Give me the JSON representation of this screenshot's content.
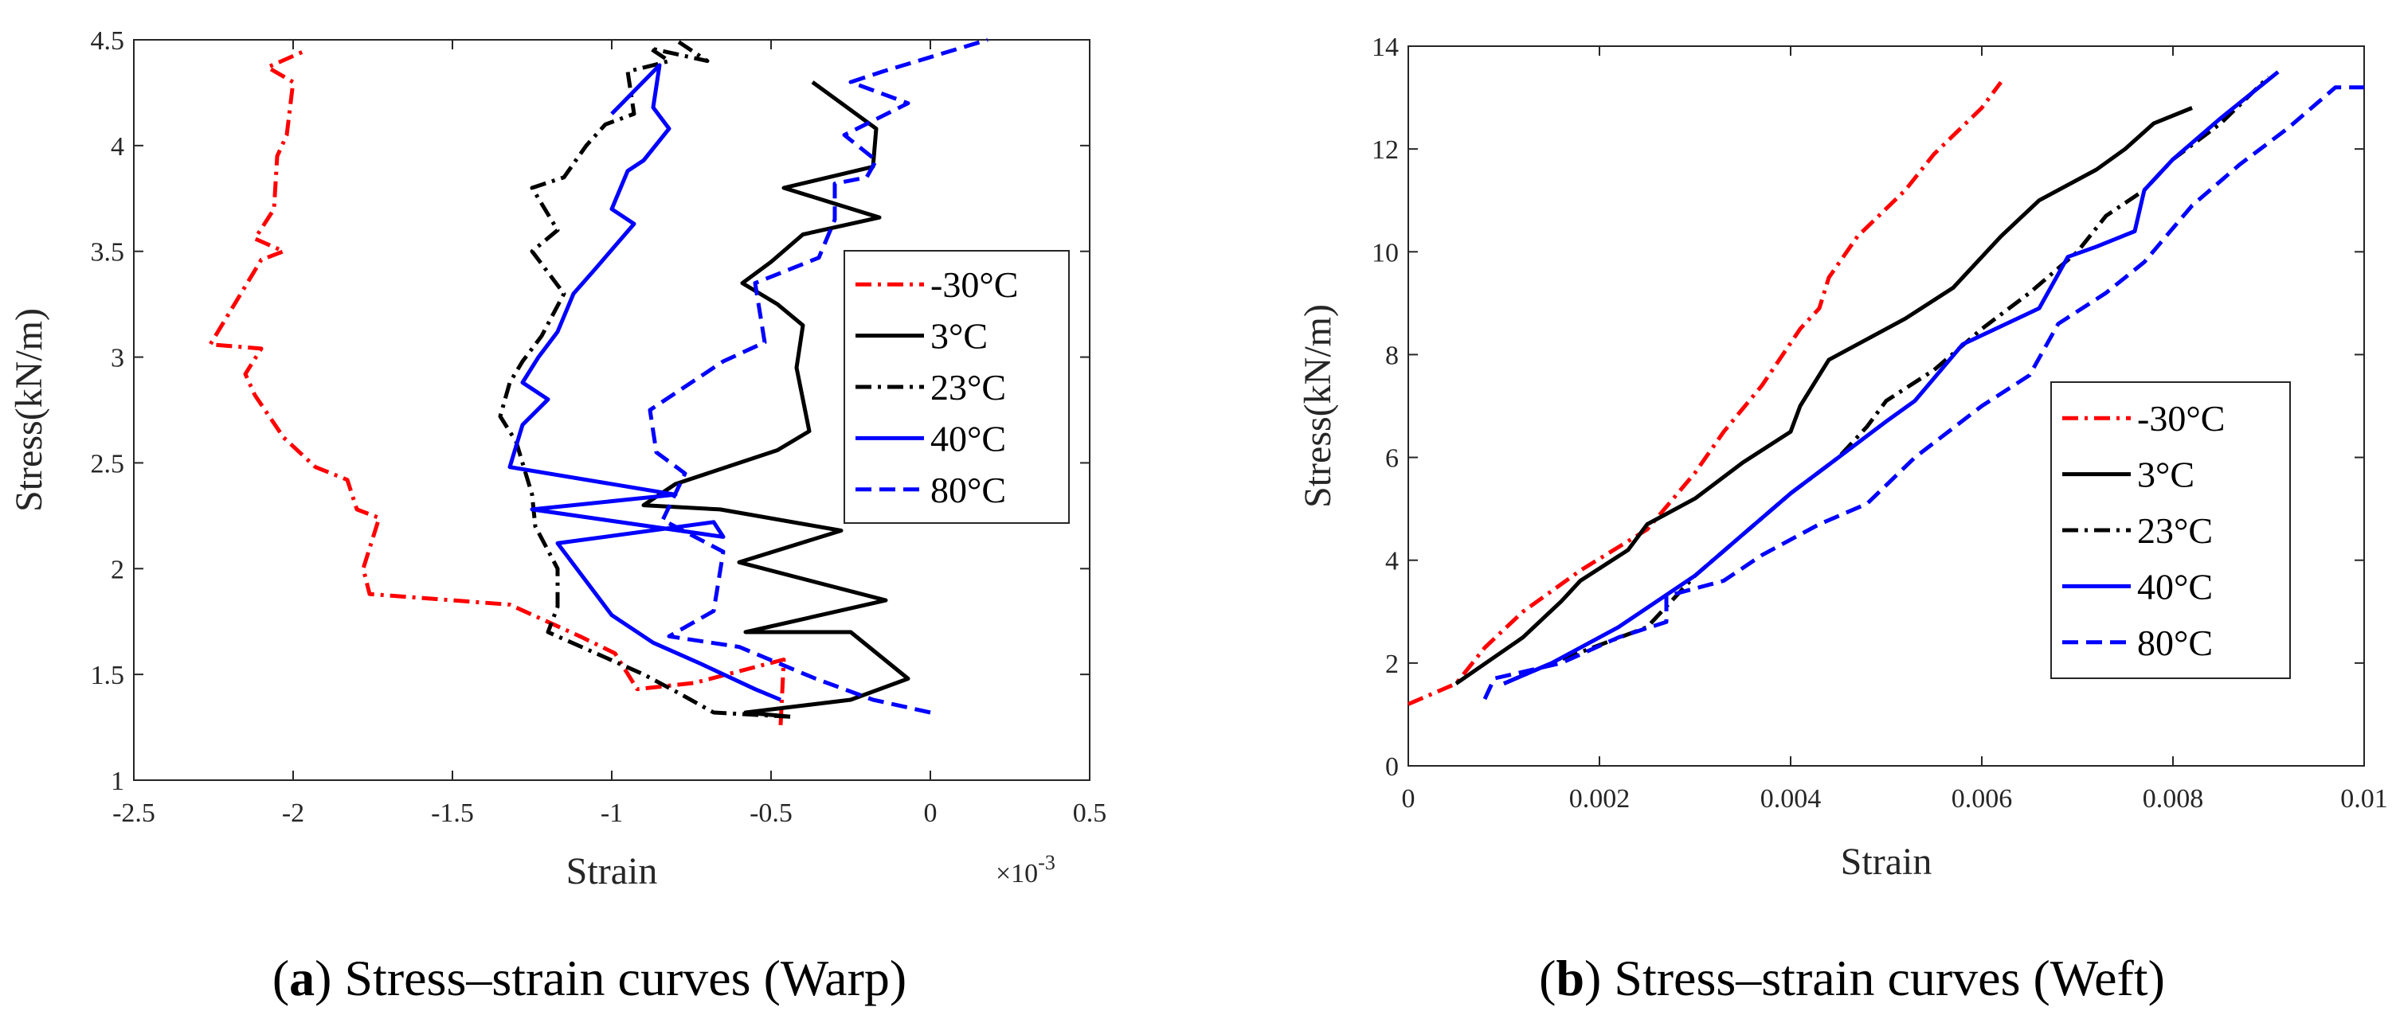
{
  "chart_data": [
    {
      "type": "line",
      "title": "",
      "caption_letter": "a",
      "caption_text": "Stress–strain curves (Warp)",
      "xlabel": "Strain",
      "ylabel": "Stress(kN/m)",
      "x_exponent_label": "×10",
      "x_exponent_power": "-3",
      "xlim": [
        -2.5,
        0.5
      ],
      "ylim": [
        1,
        4.5
      ],
      "xticks": [
        -2.5,
        -2,
        -1.5,
        -1,
        -0.5,
        0,
        0.5
      ],
      "xtick_labels": [
        "-2.5",
        "-2",
        "-1.5",
        "-1",
        "-0.5",
        "0",
        "0.5"
      ],
      "yticks": [
        1,
        1.5,
        2,
        2.5,
        3,
        3.5,
        4,
        4.5
      ],
      "ytick_labels": [
        "1",
        "1.5",
        "2",
        "2.5",
        "3",
        "3.5",
        "4",
        "4.5"
      ],
      "grid": false,
      "legend_position": "right",
      "series": [
        {
          "name": "-30°C",
          "color": "#ff0000",
          "dash": "dashdot",
          "points": [
            [
              -0.47,
              1.26
            ],
            [
              -0.46,
              1.57
            ],
            [
              -0.74,
              1.46
            ],
            [
              -0.92,
              1.43
            ],
            [
              -0.99,
              1.6
            ],
            [
              -1.1,
              1.68
            ],
            [
              -1.32,
              1.83
            ],
            [
              -1.76,
              1.88
            ],
            [
              -1.78,
              2.0
            ],
            [
              -1.73,
              2.24
            ],
            [
              -1.8,
              2.28
            ],
            [
              -1.83,
              2.42
            ],
            [
              -1.93,
              2.48
            ],
            [
              -2.03,
              2.62
            ],
            [
              -2.12,
              2.82
            ],
            [
              -2.15,
              2.92
            ],
            [
              -2.1,
              3.04
            ],
            [
              -2.26,
              3.06
            ],
            [
              -2.18,
              3.26
            ],
            [
              -2.1,
              3.46
            ],
            [
              -2.03,
              3.5
            ],
            [
              -2.12,
              3.56
            ],
            [
              -2.06,
              3.7
            ],
            [
              -2.05,
              3.95
            ],
            [
              -2.02,
              4.05
            ],
            [
              -2.0,
              4.3
            ],
            [
              -2.08,
              4.37
            ],
            [
              -1.96,
              4.45
            ]
          ]
        },
        {
          "name": "3°C",
          "color": "#000000",
          "dash": "solid",
          "points": [
            [
              -0.44,
              1.3
            ],
            [
              -0.58,
              1.32
            ],
            [
              -0.25,
              1.38
            ],
            [
              -0.07,
              1.48
            ],
            [
              -0.25,
              1.7
            ],
            [
              -0.58,
              1.7
            ],
            [
              -0.14,
              1.85
            ],
            [
              -0.6,
              2.03
            ],
            [
              -0.28,
              2.18
            ],
            [
              -0.66,
              2.28
            ],
            [
              -0.9,
              2.3
            ],
            [
              -0.8,
              2.4
            ],
            [
              -0.48,
              2.56
            ],
            [
              -0.38,
              2.65
            ],
            [
              -0.42,
              2.95
            ],
            [
              -0.4,
              3.15
            ],
            [
              -0.48,
              3.25
            ],
            [
              -0.59,
              3.35
            ],
            [
              -0.5,
              3.45
            ],
            [
              -0.4,
              3.58
            ],
            [
              -0.16,
              3.66
            ],
            [
              -0.46,
              3.8
            ],
            [
              -0.18,
              3.9
            ],
            [
              -0.17,
              4.08
            ],
            [
              -0.37,
              4.3
            ]
          ]
        },
        {
          "name": "23°C",
          "color": "#000000",
          "dash": "dashdot",
          "points": [
            [
              -0.44,
              1.3
            ],
            [
              -0.68,
              1.32
            ],
            [
              -0.8,
              1.42
            ],
            [
              -0.9,
              1.5
            ],
            [
              -1.2,
              1.7
            ],
            [
              -1.17,
              1.82
            ],
            [
              -1.17,
              2.0
            ],
            [
              -1.24,
              2.2
            ],
            [
              -1.25,
              2.35
            ],
            [
              -1.3,
              2.6
            ],
            [
              -1.35,
              2.72
            ],
            [
              -1.32,
              2.88
            ],
            [
              -1.28,
              2.98
            ],
            [
              -1.22,
              3.1
            ],
            [
              -1.15,
              3.3
            ],
            [
              -1.25,
              3.5
            ],
            [
              -1.17,
              3.6
            ],
            [
              -1.25,
              3.8
            ],
            [
              -1.15,
              3.85
            ],
            [
              -1.08,
              4.0
            ],
            [
              -1.02,
              4.1
            ],
            [
              -0.93,
              4.15
            ],
            [
              -0.95,
              4.35
            ],
            [
              -0.87,
              4.38
            ],
            [
              -0.82,
              4.4
            ],
            [
              -0.88,
              4.46
            ],
            [
              -0.7,
              4.4
            ],
            [
              -0.8,
              4.5
            ]
          ]
        },
        {
          "name": "40°C",
          "color": "#0000ff",
          "dash": "solid",
          "points": [
            [
              -0.47,
              1.38
            ],
            [
              -0.55,
              1.43
            ],
            [
              -0.72,
              1.55
            ],
            [
              -0.87,
              1.65
            ],
            [
              -1.0,
              1.78
            ],
            [
              -1.17,
              2.12
            ],
            [
              -0.68,
              2.22
            ],
            [
              -0.65,
              2.15
            ],
            [
              -1.25,
              2.28
            ],
            [
              -0.8,
              2.35
            ],
            [
              -1.32,
              2.48
            ],
            [
              -1.28,
              2.68
            ],
            [
              -1.2,
              2.8
            ],
            [
              -1.28,
              2.88
            ],
            [
              -1.23,
              3.0
            ],
            [
              -1.17,
              3.12
            ],
            [
              -1.12,
              3.3
            ],
            [
              -1.05,
              3.42
            ],
            [
              -0.93,
              3.63
            ],
            [
              -1.0,
              3.7
            ],
            [
              -0.95,
              3.88
            ],
            [
              -0.9,
              3.93
            ],
            [
              -0.82,
              4.08
            ],
            [
              -0.87,
              4.18
            ],
            [
              -0.85,
              4.38
            ],
            [
              -1.0,
              4.15
            ]
          ]
        },
        {
          "name": "80°C",
          "color": "#0000ff",
          "dash": "dashed",
          "points": [
            [
              0.0,
              1.32
            ],
            [
              -0.18,
              1.38
            ],
            [
              -0.36,
              1.48
            ],
            [
              -0.6,
              1.63
            ],
            [
              -0.82,
              1.68
            ],
            [
              -0.68,
              1.8
            ],
            [
              -0.65,
              2.08
            ],
            [
              -0.84,
              2.23
            ],
            [
              -0.77,
              2.45
            ],
            [
              -0.86,
              2.55
            ],
            [
              -0.88,
              2.75
            ],
            [
              -0.65,
              2.98
            ],
            [
              -0.52,
              3.07
            ],
            [
              -0.55,
              3.35
            ],
            [
              -0.35,
              3.47
            ],
            [
              -0.3,
              3.65
            ],
            [
              -0.3,
              3.82
            ],
            [
              -0.2,
              3.85
            ],
            [
              -0.17,
              3.93
            ],
            [
              -0.27,
              4.05
            ],
            [
              -0.07,
              4.2
            ],
            [
              -0.25,
              4.3
            ],
            [
              -0.15,
              4.35
            ],
            [
              0.18,
              4.5
            ]
          ]
        }
      ]
    },
    {
      "type": "line",
      "title": "",
      "caption_letter": "b",
      "caption_text": "Stress–strain curves (Weft)",
      "xlabel": "Strain",
      "ylabel": "Stress(kN/m)",
      "xlim": [
        0,
        0.01
      ],
      "ylim": [
        0,
        14
      ],
      "xticks": [
        0,
        0.002,
        0.004,
        0.006,
        0.008,
        0.01
      ],
      "xtick_labels": [
        "0",
        "0.002",
        "0.004",
        "0.006",
        "0.008",
        "0.01"
      ],
      "yticks": [
        0,
        2,
        4,
        6,
        8,
        10,
        12,
        14
      ],
      "ytick_labels": [
        "0",
        "2",
        "4",
        "6",
        "8",
        "10",
        "12",
        "14"
      ],
      "grid": false,
      "legend_position": "right",
      "series": [
        {
          "name": "-30°C",
          "color": "#ff0000",
          "dash": "dashdot",
          "points": [
            [
              0.0,
              1.2
            ],
            [
              0.0005,
              1.6
            ],
            [
              0.0008,
              2.3
            ],
            [
              0.0012,
              3.0
            ],
            [
              0.0018,
              3.8
            ],
            [
              0.0025,
              4.6
            ],
            [
              0.003,
              5.7
            ],
            [
              0.0033,
              6.5
            ],
            [
              0.0037,
              7.4
            ],
            [
              0.0041,
              8.5
            ],
            [
              0.0043,
              8.9
            ],
            [
              0.0044,
              9.5
            ],
            [
              0.0047,
              10.3
            ],
            [
              0.0052,
              11.2
            ],
            [
              0.0055,
              11.9
            ],
            [
              0.006,
              12.8
            ],
            [
              0.0062,
              13.3
            ]
          ]
        },
        {
          "name": "3°C",
          "color": "#000000",
          "dash": "solid",
          "points": [
            [
              0.0005,
              1.6
            ],
            [
              0.0012,
              2.5
            ],
            [
              0.0016,
              3.2
            ],
            [
              0.0018,
              3.6
            ],
            [
              0.0023,
              4.2
            ],
            [
              0.0025,
              4.7
            ],
            [
              0.003,
              5.2
            ],
            [
              0.0035,
              5.9
            ],
            [
              0.004,
              6.5
            ],
            [
              0.0041,
              7.0
            ],
            [
              0.0044,
              7.9
            ],
            [
              0.0052,
              8.7
            ],
            [
              0.0057,
              9.3
            ],
            [
              0.0062,
              10.3
            ],
            [
              0.0066,
              11.0
            ],
            [
              0.0072,
              11.6
            ],
            [
              0.0075,
              12.0
            ],
            [
              0.0078,
              12.5
            ],
            [
              0.0082,
              12.8
            ]
          ]
        },
        {
          "name": "23°C",
          "color": "#000000",
          "dash": "dashdot",
          "points": [
            [
              0.001,
              1.6
            ],
            [
              0.0015,
              2.0
            ],
            [
              0.0025,
              2.7
            ],
            [
              0.003,
              3.7
            ],
            [
              0.0035,
              4.5
            ],
            [
              0.004,
              5.3
            ],
            [
              0.0045,
              6.0
            ],
            [
              0.0048,
              6.6
            ],
            [
              0.005,
              7.1
            ],
            [
              0.0055,
              7.7
            ],
            [
              0.006,
              8.5
            ],
            [
              0.0065,
              9.2
            ],
            [
              0.007,
              10.0
            ],
            [
              0.0073,
              10.7
            ],
            [
              0.0077,
              11.2
            ],
            [
              0.008,
              11.8
            ],
            [
              0.0085,
              12.5
            ],
            [
              0.009,
              13.4
            ]
          ]
        },
        {
          "name": "40°C",
          "color": "#0000ff",
          "dash": "solid",
          "points": [
            [
              0.001,
              1.6
            ],
            [
              0.0015,
              2.0
            ],
            [
              0.0022,
              2.7
            ],
            [
              0.003,
              3.7
            ],
            [
              0.0035,
              4.5
            ],
            [
              0.004,
              5.3
            ],
            [
              0.0045,
              6.0
            ],
            [
              0.005,
              6.7
            ],
            [
              0.0053,
              7.1
            ],
            [
              0.0058,
              8.2
            ],
            [
              0.0066,
              8.9
            ],
            [
              0.0069,
              9.9
            ],
            [
              0.0072,
              10.1
            ],
            [
              0.0076,
              10.4
            ],
            [
              0.0077,
              11.2
            ],
            [
              0.008,
              11.8
            ],
            [
              0.0085,
              12.6
            ],
            [
              0.0091,
              13.5
            ]
          ]
        },
        {
          "name": "80°C",
          "color": "#0000ff",
          "dash": "dashed",
          "points": [
            [
              0.0008,
              1.3
            ],
            [
              0.0009,
              1.7
            ],
            [
              0.0016,
              2.0
            ],
            [
              0.0022,
              2.5
            ],
            [
              0.0027,
              2.8
            ],
            [
              0.0027,
              3.3
            ],
            [
              0.0033,
              3.6
            ],
            [
              0.0037,
              4.1
            ],
            [
              0.0043,
              4.7
            ],
            [
              0.0048,
              5.1
            ],
            [
              0.0053,
              6.0
            ],
            [
              0.006,
              7.0
            ],
            [
              0.0065,
              7.6
            ],
            [
              0.0068,
              8.6
            ],
            [
              0.0073,
              9.2
            ],
            [
              0.0077,
              9.8
            ],
            [
              0.0082,
              10.9
            ],
            [
              0.0087,
              11.7
            ],
            [
              0.0092,
              12.4
            ],
            [
              0.0097,
              13.2
            ],
            [
              0.01,
              13.2
            ]
          ]
        }
      ]
    }
  ]
}
